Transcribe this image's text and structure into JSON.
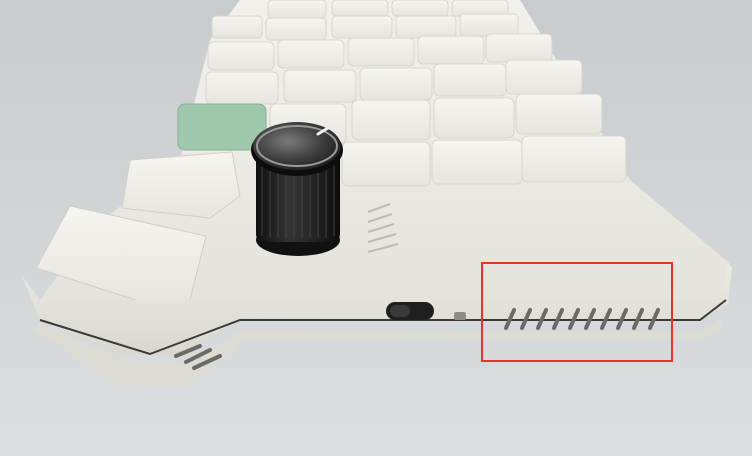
{
  "image": {
    "subject": "keyboard-photo",
    "highlight": {
      "target": "side-vent-grille",
      "color": "#e8332b"
    },
    "colors": {
      "background": "#d1d4d6",
      "case": "#ecebe4",
      "keycap": "#f1f0ea",
      "accent_keycap": "#9fc8ac",
      "knob": "#1d1d1d"
    }
  }
}
